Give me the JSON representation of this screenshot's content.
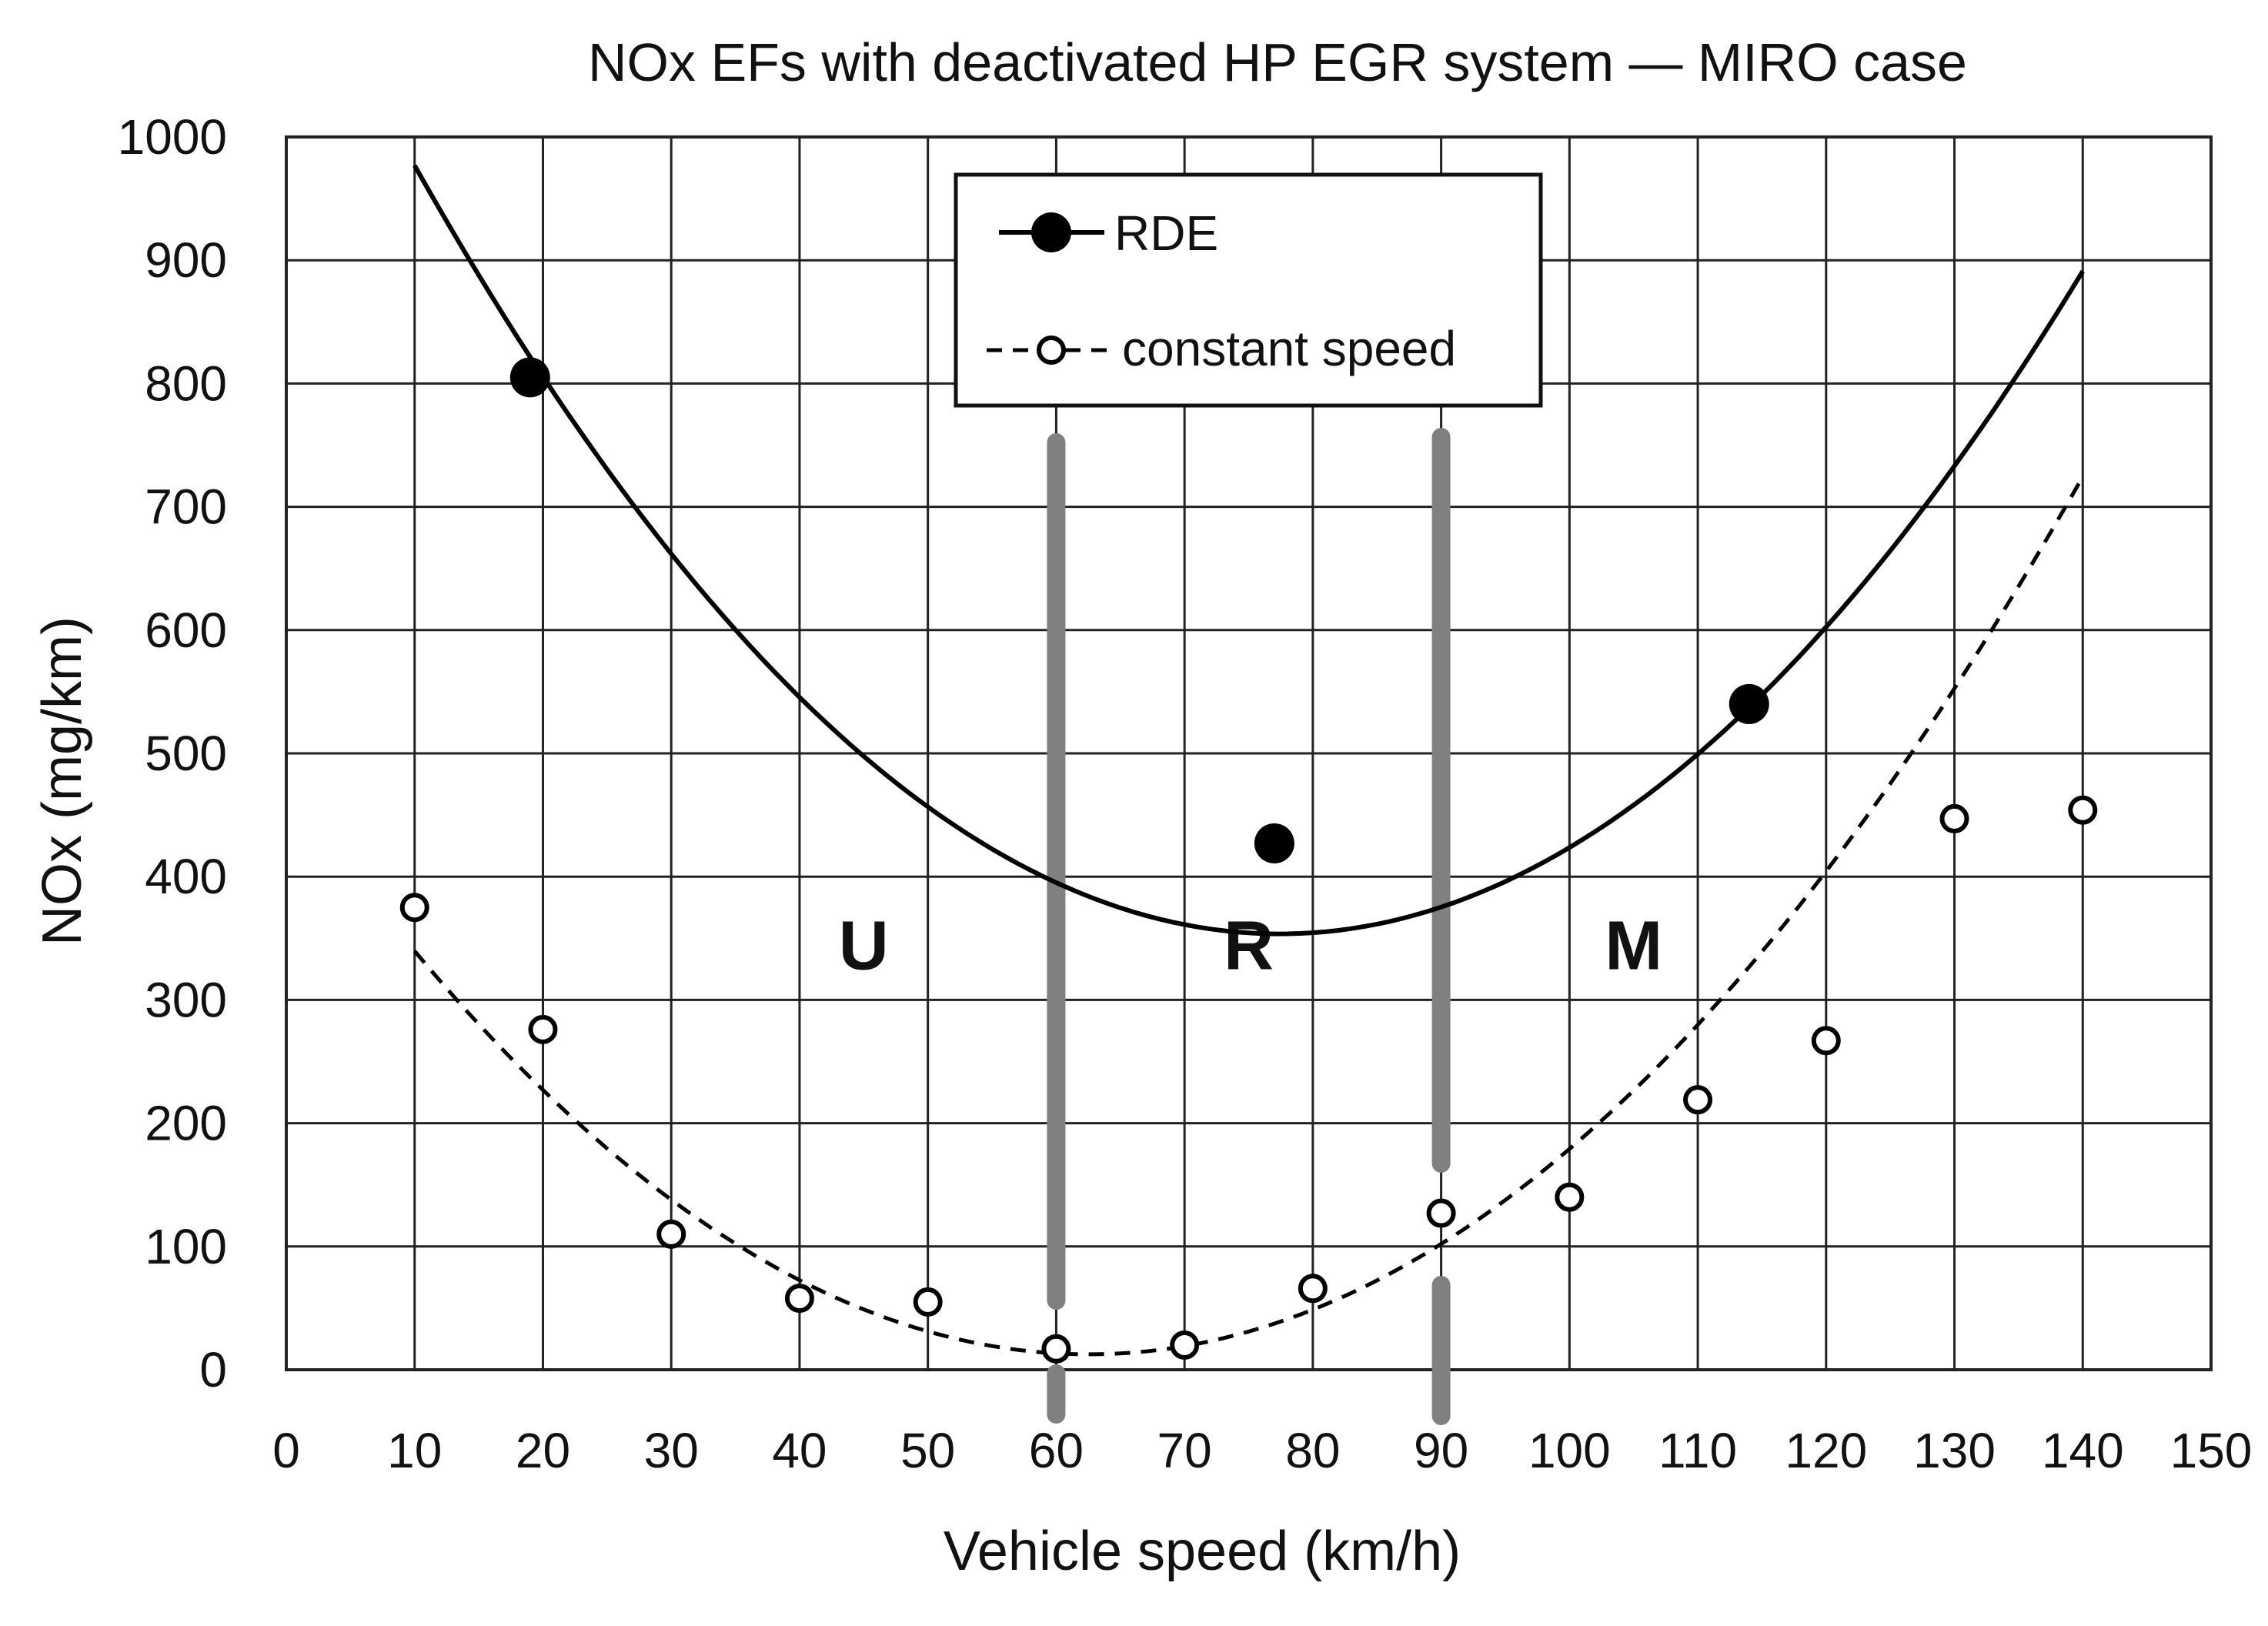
{
  "chart_data": {
    "type": "line",
    "title": "NOx EFs with deactivated HP EGR system — MIRO case",
    "xlabel": "Vehicle speed (km/h)",
    "ylabel": "NOx (mg/km)",
    "xlim": [
      0,
      150
    ],
    "ylim": [
      0,
      1000
    ],
    "x_ticks": [
      0,
      10,
      20,
      30,
      40,
      50,
      60,
      70,
      80,
      90,
      100,
      110,
      120,
      130,
      140,
      150
    ],
    "y_ticks": [
      0,
      100,
      200,
      300,
      400,
      500,
      600,
      700,
      800,
      900,
      1000
    ],
    "grid": true,
    "legend": {
      "position": "top-center",
      "entries": [
        "RDE",
        "constant speed"
      ]
    },
    "series": [
      {
        "name": "RDE",
        "style": "solid line with filled markers",
        "color": "#000000",
        "points": [
          {
            "x": 19,
            "y": 805
          },
          {
            "x": 77,
            "y": 427
          },
          {
            "x": 114,
            "y": 540
          }
        ],
        "trend": {
          "x_range": [
            10,
            140
          ],
          "coefficients": [
            1175.6,
            -21.24,
            0.1372
          ]
        }
      },
      {
        "name": "constant speed",
        "style": "dashed line with open markers",
        "color": "#000000",
        "points": [
          {
            "x": 10,
            "y": 375
          },
          {
            "x": 20,
            "y": 276
          },
          {
            "x": 30,
            "y": 110
          },
          {
            "x": 40,
            "y": 58
          },
          {
            "x": 50,
            "y": 55
          },
          {
            "x": 60,
            "y": 17
          },
          {
            "x": 70,
            "y": 20
          },
          {
            "x": 80,
            "y": 66
          },
          {
            "x": 90,
            "y": 127
          },
          {
            "x": 100,
            "y": 140
          },
          {
            "x": 110,
            "y": 219
          },
          {
            "x": 120,
            "y": 267
          },
          {
            "x": 130,
            "y": 447
          },
          {
            "x": 140,
            "y": 454
          }
        ],
        "trend": {
          "x_range": [
            10,
            140
          ],
          "coefficients": [
            476.1,
            -14.83,
            0.1186
          ]
        }
      }
    ],
    "zone_boundaries": [
      60,
      90
    ],
    "zone_boundary_color": "#808080",
    "zones": [
      {
        "label": "U",
        "x": 45,
        "y": 345
      },
      {
        "label": "R",
        "x": 75,
        "y": 345
      },
      {
        "label": "M",
        "x": 105,
        "y": 345
      }
    ]
  }
}
